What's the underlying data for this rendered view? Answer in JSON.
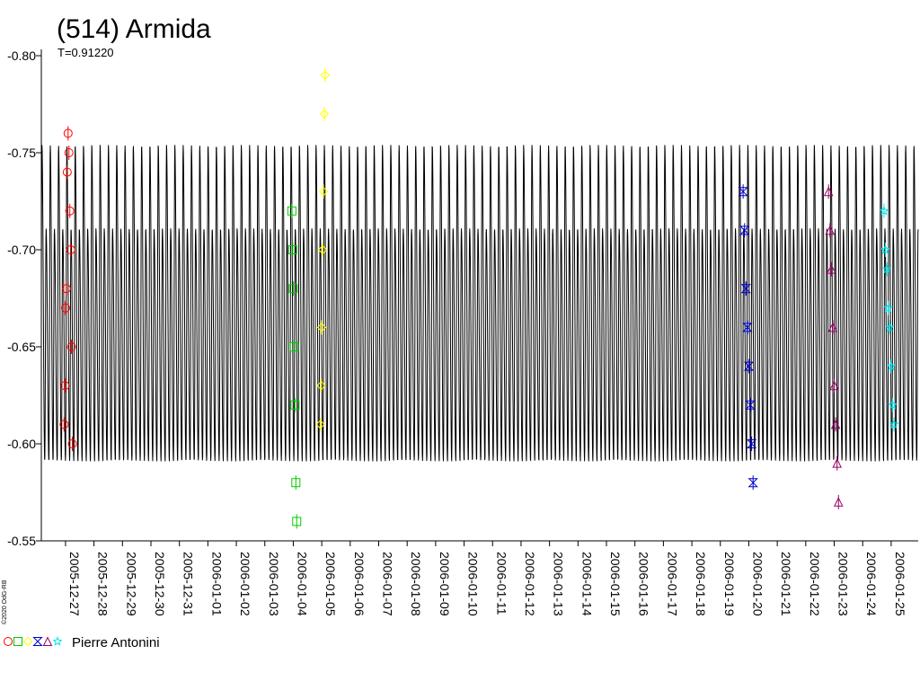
{
  "chart_data": {
    "type": "scatter",
    "title": "(514) Armida",
    "subtitle": "T=0.91220",
    "credit": "©2020 OdG-RB",
    "xlabel": "",
    "ylabel": "",
    "grid": false,
    "x_tick_labels": [
      "2005-12-27",
      "2005-12-28",
      "2005-12-29",
      "2005-12-30",
      "2005-12-31",
      "2006-01-01",
      "2006-01-02",
      "2006-01-03",
      "2006-01-04",
      "2006-01-05",
      "2006-01-06",
      "2006-01-07",
      "2006-01-08",
      "2006-01-09",
      "2006-01-10",
      "2006-01-11",
      "2006-01-12",
      "2006-01-13",
      "2006-01-14",
      "2006-01-15",
      "2006-01-16",
      "2006-01-17",
      "2006-01-18",
      "2006-01-19",
      "2006-01-20",
      "2006-01-21",
      "2006-01-22",
      "2006-01-23",
      "2006-01-24",
      "2006-01-25"
    ],
    "x_range_days": [
      -0.85,
      29.95
    ],
    "y_tick_labels": [
      "-0.80",
      "-0.75",
      "-0.70",
      "-0.65",
      "-0.60",
      "-0.55"
    ],
    "y_ticks": [
      -0.8,
      -0.75,
      -0.7,
      -0.65,
      -0.6,
      -0.55
    ],
    "ylim": [
      -0.8,
      -0.55
    ],
    "y_inverted": true,
    "model_curve": {
      "period_days": 0.2917,
      "primary_min": -0.754,
      "secondary_min": -0.711,
      "max": -0.591,
      "color": "#000000"
    },
    "legend": {
      "position": "bottom-left",
      "label": "Pierre Antonini"
    },
    "series": [
      {
        "marker": "circle",
        "color": "#ff0000",
        "x": [
          -0.05,
          -0.02,
          0.0,
          0.03,
          0.06,
          0.09,
          0.12,
          0.15,
          0.18,
          0.21,
          0.24
        ],
        "y": [
          -0.61,
          -0.63,
          -0.67,
          -0.68,
          -0.74,
          -0.76,
          -0.75,
          -0.72,
          -0.7,
          -0.65,
          -0.6
        ]
      },
      {
        "marker": "square",
        "color": "#00cc00",
        "x": [
          7.95,
          7.98,
          8.0,
          8.03,
          8.06,
          8.09,
          8.12
        ],
        "y": [
          -0.72,
          -0.7,
          -0.68,
          -0.65,
          -0.62,
          -0.58,
          -0.56
        ]
      },
      {
        "marker": "diamond",
        "color": "#ffff00",
        "x": [
          8.95,
          8.98,
          9.0,
          9.03,
          9.06,
          9.09,
          9.12
        ],
        "y": [
          -0.61,
          -0.63,
          -0.66,
          -0.7,
          -0.73,
          -0.77,
          -0.79
        ]
      },
      {
        "marker": "hourglass",
        "color": "#0000cc",
        "x": [
          23.8,
          23.85,
          23.9,
          23.95,
          24.0,
          24.05,
          24.1,
          24.15
        ],
        "y": [
          -0.73,
          -0.71,
          -0.68,
          -0.66,
          -0.64,
          -0.62,
          -0.6,
          -0.58
        ]
      },
      {
        "marker": "triangle",
        "color": "#990066",
        "x": [
          26.8,
          26.85,
          26.9,
          26.95,
          27.0,
          27.05,
          27.1,
          27.15
        ],
        "y": [
          -0.73,
          -0.71,
          -0.69,
          -0.66,
          -0.63,
          -0.61,
          -0.59,
          -0.57
        ]
      },
      {
        "marker": "star",
        "color": "#00e5ee",
        "x": [
          28.75,
          28.8,
          28.85,
          28.9,
          28.95,
          29.0,
          29.05,
          29.1
        ],
        "y": [
          -0.72,
          -0.7,
          -0.69,
          -0.67,
          -0.66,
          -0.64,
          -0.62,
          -0.61
        ]
      }
    ]
  }
}
